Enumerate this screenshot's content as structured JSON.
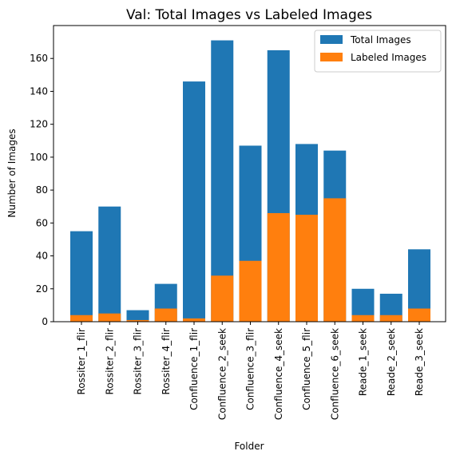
{
  "chart_data": {
    "type": "bar",
    "title": "Val: Total Images vs Labeled Images",
    "xlabel": "Folder",
    "ylabel": "Number of Images",
    "ylim": [
      0,
      180
    ],
    "yticks": [
      0,
      20,
      40,
      60,
      80,
      100,
      120,
      140,
      160
    ],
    "grid": false,
    "legend_position": "top-right",
    "categories": [
      "Rossiter_1_flir",
      "Rossiter_2_flir",
      "Rossiter_3_flir",
      "Rossiter_4_flir",
      "Confluence_1_flir",
      "Confluence_2_seek",
      "Confluence_3_flir",
      "Confluence_4_seek",
      "Confluence_5_flir",
      "Confluence_6_seek",
      "Reade_1_seek",
      "Reade_2_seek",
      "Reade_3_seek"
    ],
    "series": [
      {
        "name": "Total Images",
        "color": "#1f77b4",
        "values": [
          55,
          70,
          7,
          23,
          146,
          171,
          107,
          165,
          108,
          104,
          20,
          17,
          44
        ]
      },
      {
        "name": "Labeled Images",
        "color": "#ff7f0e",
        "values": [
          4,
          5,
          1,
          8,
          2,
          28,
          37,
          66,
          65,
          75,
          4,
          4,
          8
        ]
      }
    ]
  }
}
